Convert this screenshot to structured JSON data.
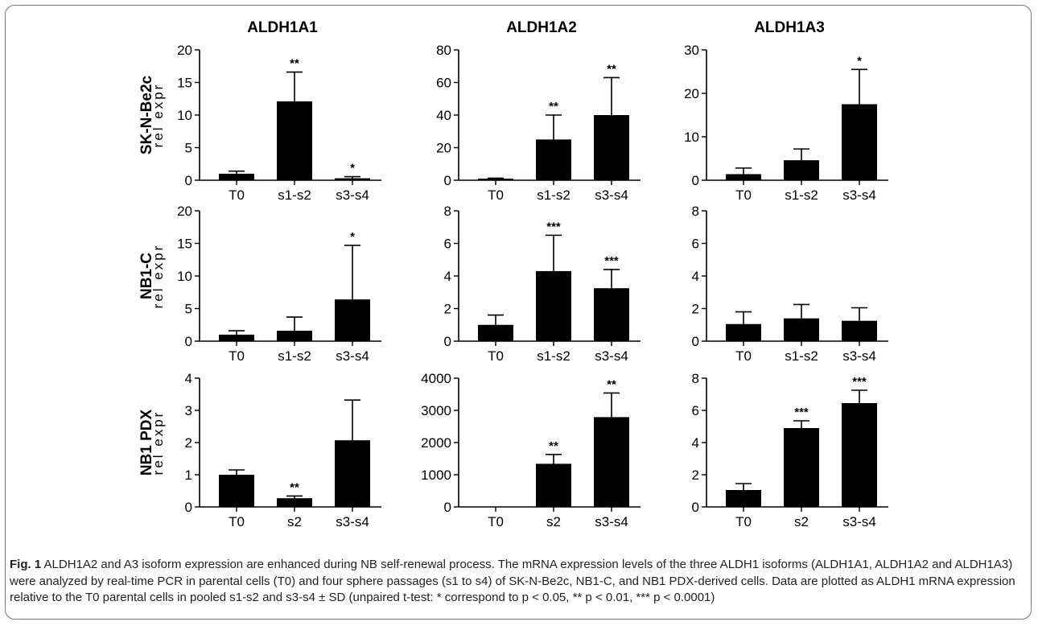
{
  "colors": {
    "bar": "#000000",
    "axis": "#000000",
    "frame": "#7a7a7a"
  },
  "columns": [
    "ALDH1A1",
    "ALDH1A2",
    "ALDH1A3"
  ],
  "rows": [
    "SK-N-Be2c",
    "NB1-C",
    "NB1 PDX"
  ],
  "ylabel": "rel expr",
  "chart_data": [
    {
      "type": "bar",
      "row": "SK-N-Be2c",
      "column": "ALDH1A1",
      "categories": [
        "T0",
        "s1-s2",
        "s3-s4"
      ],
      "values": [
        1.0,
        12.1,
        0.3
      ],
      "errors": [
        0.4,
        4.5,
        0.25
      ],
      "significance": [
        "",
        "**",
        "*"
      ],
      "ylim": [
        0,
        20
      ],
      "yticks": [
        0,
        5,
        10,
        15,
        20
      ],
      "ylabel": "rel expr"
    },
    {
      "type": "bar",
      "row": "SK-N-Be2c",
      "column": "ALDH1A2",
      "categories": [
        "T0",
        "s1-s2",
        "s3-s4"
      ],
      "values": [
        1.0,
        25,
        40
      ],
      "errors": [
        0.3,
        15,
        23
      ],
      "significance": [
        "",
        "**",
        "**"
      ],
      "ylim": [
        0,
        80
      ],
      "yticks": [
        0,
        20,
        40,
        60,
        80
      ],
      "ylabel": ""
    },
    {
      "type": "bar",
      "row": "SK-N-Be2c",
      "column": "ALDH1A3",
      "categories": [
        "T0",
        "s1-s2",
        "s3-s4"
      ],
      "values": [
        1.4,
        4.6,
        17.5
      ],
      "errors": [
        1.4,
        2.6,
        8
      ],
      "significance": [
        "",
        "",
        "*"
      ],
      "ylim": [
        0,
        30
      ],
      "yticks": [
        0,
        10,
        20,
        30
      ],
      "ylabel": ""
    },
    {
      "type": "bar",
      "row": "NB1-C",
      "column": "ALDH1A1",
      "categories": [
        "T0",
        "s1-s2",
        "s3-s4"
      ],
      "values": [
        1.0,
        1.6,
        6.4
      ],
      "errors": [
        0.6,
        2.1,
        8.3
      ],
      "significance": [
        "",
        "",
        "*"
      ],
      "ylim": [
        0,
        20
      ],
      "yticks": [
        0,
        5,
        10,
        15,
        20
      ],
      "ylabel": "rel expr"
    },
    {
      "type": "bar",
      "row": "NB1-C",
      "column": "ALDH1A2",
      "categories": [
        "T0",
        "s1-s2",
        "s3-s4"
      ],
      "values": [
        1.0,
        4.3,
        3.25
      ],
      "errors": [
        0.6,
        2.2,
        1.15
      ],
      "significance": [
        "",
        "***",
        "***"
      ],
      "ylim": [
        0,
        8
      ],
      "yticks": [
        0,
        2,
        4,
        6,
        8
      ],
      "ylabel": ""
    },
    {
      "type": "bar",
      "row": "NB1-C",
      "column": "ALDH1A3",
      "categories": [
        "T0",
        "s1-s2",
        "s3-s4"
      ],
      "values": [
        1.05,
        1.4,
        1.25
      ],
      "errors": [
        0.75,
        0.85,
        0.8
      ],
      "significance": [
        "",
        "",
        ""
      ],
      "ylim": [
        0,
        8
      ],
      "yticks": [
        0,
        2,
        4,
        6,
        8
      ],
      "ylabel": ""
    },
    {
      "type": "bar",
      "row": "NB1 PDX",
      "column": "ALDH1A1",
      "categories": [
        "T0",
        "s2",
        "s3-s4"
      ],
      "values": [
        1.0,
        0.27,
        2.07
      ],
      "errors": [
        0.15,
        0.07,
        1.25
      ],
      "significance": [
        "",
        "**",
        ""
      ],
      "ylim": [
        0,
        4
      ],
      "yticks": [
        0,
        1,
        2,
        3,
        4
      ],
      "ylabel": "rel expr"
    },
    {
      "type": "bar",
      "row": "NB1 PDX",
      "column": "ALDH1A2",
      "categories": [
        "T0",
        "s2",
        "s3-s4"
      ],
      "values": [
        1,
        1340,
        2790
      ],
      "errors": [
        0,
        290,
        750
      ],
      "significance": [
        "",
        "**",
        "**"
      ],
      "ylim": [
        0,
        4000
      ],
      "yticks": [
        0,
        1000,
        2000,
        3000,
        4000
      ],
      "ylabel": ""
    },
    {
      "type": "bar",
      "row": "NB1 PDX",
      "column": "ALDH1A3",
      "categories": [
        "T0",
        "s2",
        "s3-s4"
      ],
      "values": [
        1.05,
        4.9,
        6.45
      ],
      "errors": [
        0.4,
        0.45,
        0.8
      ],
      "significance": [
        "",
        "***",
        "***"
      ],
      "ylim": [
        0,
        8
      ],
      "yticks": [
        0,
        2,
        4,
        6,
        8
      ],
      "ylabel": ""
    }
  ],
  "caption": {
    "fig_label": "Fig. 1",
    "text": "ALDH1A2 and A3 isoform expression are enhanced during NB self-renewal process. The mRNA expression levels of the three ALDH1 isoforms (ALDH1A1, ALDH1A2 and ALDH1A3) were analyzed by real-time PCR in parental cells (T0) and four sphere passages (s1 to s4) of SK-N-Be2c, NB1-C, and NB1 PDX-derived cells. Data are plotted as ALDH1 mRNA expression relative to the T0 parental cells in pooled s1-s2 and s3-s4 ± SD (unpaired t-test: * correspond to p < 0.05, ** p < 0.01, *** p < 0.0001)"
  }
}
